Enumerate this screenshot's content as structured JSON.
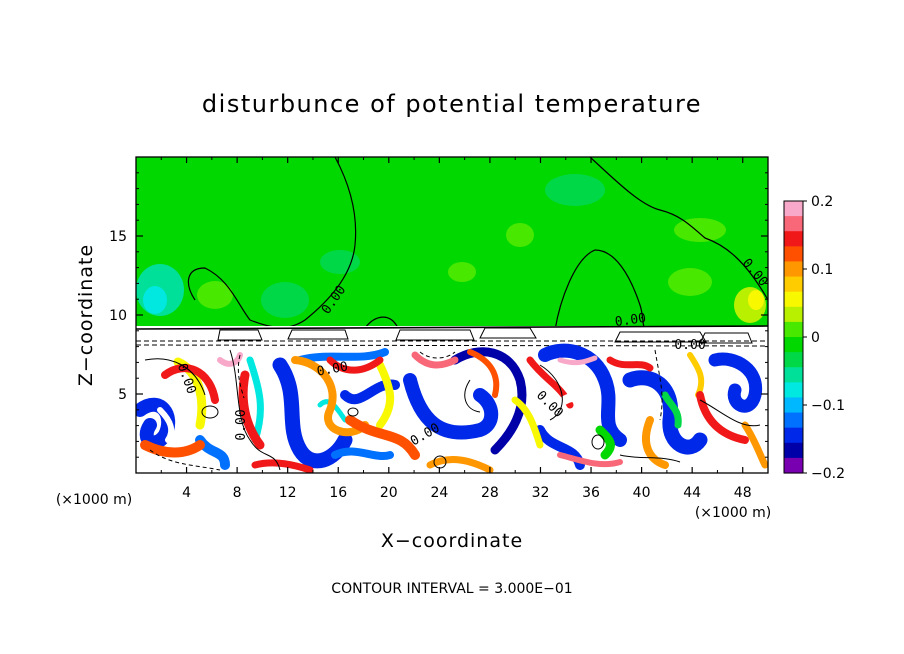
{
  "chart_data": {
    "type": "heatmap",
    "title": "disturbunce of potential temperature",
    "xlabel": "X−coordinate",
    "ylabel": "Z−coordinate",
    "x_unit_label_left": "(×1000 m)",
    "x_unit_label_right": "(×1000 m)",
    "xlim": [
      0,
      50
    ],
    "ylim": [
      0,
      20
    ],
    "x_ticks": [
      4,
      8,
      12,
      16,
      20,
      24,
      28,
      32,
      36,
      40,
      44,
      48
    ],
    "y_ticks": [
      5,
      10,
      15
    ],
    "colorbar": {
      "range": [
        -0.2,
        0.2
      ],
      "tick_labels": [
        "0.2",
        "0.1",
        "0",
        "−0.1",
        "−0.2"
      ],
      "tick_values": [
        0.2,
        0.1,
        0,
        -0.1,
        -0.2
      ],
      "colors": [
        "#f8a8c8",
        "#f86878",
        "#f01818",
        "#ff5000",
        "#ff9800",
        "#ffcc00",
        "#f8f800",
        "#b8f000",
        "#48e800",
        "#00d800",
        "#00d848",
        "#00e098",
        "#00e8e0",
        "#00b8ff",
        "#0070ff",
        "#0028e8",
        "#0000a8",
        "#7800b0"
      ]
    },
    "contour_labels": [
      "0.00",
      "0.00",
      "0.00",
      "0.00",
      "0.00",
      "0.00",
      "0.00",
      "0.00",
      "0.00"
    ],
    "contour_interval_note": "CONTOUR INTERVAL = 3.000E−01",
    "grid": false
  }
}
